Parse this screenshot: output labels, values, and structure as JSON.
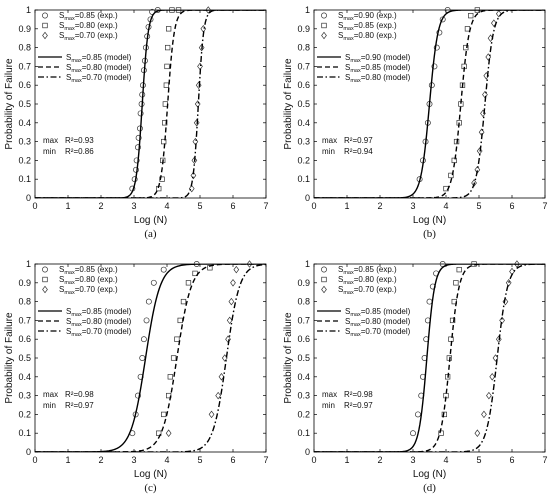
{
  "chart_data": [
    {
      "type": "line",
      "panel_label": "(a)",
      "xlabel": "Log (N)",
      "ylabel": "Probability of Failure",
      "xlim": [
        0,
        7
      ],
      "ylim": [
        0,
        1
      ],
      "xticks": [
        "0",
        "1",
        "2",
        "3",
        "4",
        "5",
        "6",
        "7"
      ],
      "yticks": [
        "0",
        "0.1",
        "0.2",
        "0.3",
        "0.4",
        "0.5",
        "0.6",
        "0.7",
        "0.8",
        "0.9",
        "1"
      ],
      "legend_position": "top-left",
      "series": [
        {
          "name": "S_max=0.85 (exp.)",
          "kind": "scatter",
          "marker": "circle",
          "points": [
            [
              2.95,
              0.05
            ],
            [
              3.02,
              0.1
            ],
            [
              3.06,
              0.15
            ],
            [
              3.08,
              0.2
            ],
            [
              3.12,
              0.27
            ],
            [
              3.14,
              0.32
            ],
            [
              3.18,
              0.37
            ],
            [
              3.2,
              0.45
            ],
            [
              3.23,
              0.5
            ],
            [
              3.25,
              0.55
            ],
            [
              3.27,
              0.6
            ],
            [
              3.3,
              0.68
            ],
            [
              3.33,
              0.73
            ],
            [
              3.36,
              0.8
            ],
            [
              3.4,
              0.86
            ],
            [
              3.44,
              0.91
            ],
            [
              3.5,
              0.95
            ],
            [
              3.55,
              0.99
            ],
            [
              3.72,
              1.0
            ]
          ]
        },
        {
          "name": "S_max=0.80 (exp.)",
          "kind": "scatter",
          "marker": "square",
          "points": [
            [
              3.75,
              0.05
            ],
            [
              3.85,
              0.1
            ],
            [
              3.87,
              0.2
            ],
            [
              3.9,
              0.3
            ],
            [
              3.93,
              0.4
            ],
            [
              3.95,
              0.5
            ],
            [
              3.98,
              0.6
            ],
            [
              4.0,
              0.7
            ],
            [
              4.02,
              0.8
            ],
            [
              4.05,
              0.9
            ],
            [
              4.15,
              1.0
            ],
            [
              4.35,
              1.0
            ]
          ]
        },
        {
          "name": "S_max=0.70 (exp.)",
          "kind": "scatter",
          "marker": "diamond",
          "points": [
            [
              4.75,
              0.05
            ],
            [
              4.8,
              0.12
            ],
            [
              4.83,
              0.2
            ],
            [
              4.86,
              0.3
            ],
            [
              4.9,
              0.4
            ],
            [
              4.93,
              0.5
            ],
            [
              4.96,
              0.6
            ],
            [
              5.0,
              0.7
            ],
            [
              5.05,
              0.8
            ],
            [
              5.1,
              0.9
            ],
            [
              5.25,
              1.0
            ]
          ]
        },
        {
          "name": "S_max=0.85 (model)",
          "kind": "line",
          "style": "solid",
          "mu": 3.25,
          "s": 0.09
        },
        {
          "name": "S_max=0.80 (model)",
          "kind": "line",
          "style": "dashed",
          "mu": 4.02,
          "s": 0.1
        },
        {
          "name": "S_max=0.70 (model)",
          "kind": "line",
          "style": "dashdot",
          "mu": 4.95,
          "s": 0.08
        }
      ],
      "stats": [
        {
          "label": "max",
          "value": "R²=0.93"
        },
        {
          "label": "min",
          "value": "R²=0.86"
        }
      ]
    },
    {
      "type": "line",
      "panel_label": "(b)",
      "xlabel": "Log (N)",
      "ylabel": "Probability of Failure",
      "xlim": [
        0,
        7
      ],
      "ylim": [
        0,
        1
      ],
      "xticks": [
        "0",
        "1",
        "2",
        "3",
        "4",
        "5",
        "6",
        "7"
      ],
      "yticks": [
        "0",
        "0.1",
        "0.2",
        "0.3",
        "0.4",
        "0.5",
        "0.6",
        "0.7",
        "0.8",
        "0.9",
        "1"
      ],
      "legend_position": "top-left",
      "series": [
        {
          "name": "S_max=0.90 (exp.)",
          "kind": "scatter",
          "marker": "circle",
          "points": [
            [
              3.2,
              0.1
            ],
            [
              3.3,
              0.2
            ],
            [
              3.38,
              0.3
            ],
            [
              3.45,
              0.4
            ],
            [
              3.5,
              0.5
            ],
            [
              3.57,
              0.6
            ],
            [
              3.65,
              0.7
            ],
            [
              3.72,
              0.8
            ],
            [
              3.8,
              0.88
            ],
            [
              3.9,
              0.95
            ],
            [
              4.05,
              1.0
            ]
          ]
        },
        {
          "name": "S_max=0.85 (exp.)",
          "kind": "scatter",
          "marker": "square",
          "points": [
            [
              4.0,
              0.05
            ],
            [
              4.15,
              0.12
            ],
            [
              4.25,
              0.2
            ],
            [
              4.32,
              0.3
            ],
            [
              4.4,
              0.4
            ],
            [
              4.45,
              0.5
            ],
            [
              4.5,
              0.6
            ],
            [
              4.55,
              0.7
            ],
            [
              4.6,
              0.8
            ],
            [
              4.65,
              0.9
            ],
            [
              4.75,
              0.97
            ],
            [
              4.95,
              1.0
            ]
          ]
        },
        {
          "name": "S_max=0.80 (exp.)",
          "kind": "scatter",
          "marker": "diamond",
          "points": [
            [
              4.85,
              0.08
            ],
            [
              4.95,
              0.15
            ],
            [
              5.02,
              0.25
            ],
            [
              5.08,
              0.35
            ],
            [
              5.12,
              0.45
            ],
            [
              5.18,
              0.55
            ],
            [
              5.22,
              0.65
            ],
            [
              5.28,
              0.75
            ],
            [
              5.35,
              0.85
            ],
            [
              5.45,
              0.93
            ],
            [
              5.6,
              0.98
            ]
          ]
        },
        {
          "name": "S_max=0.90 (model)",
          "kind": "line",
          "style": "solid",
          "mu": 3.5,
          "s": 0.13
        },
        {
          "name": "S_max=0.85 (model)",
          "kind": "line",
          "style": "dashed",
          "mu": 4.45,
          "s": 0.13
        },
        {
          "name": "S_max=0.80 (model)",
          "kind": "line",
          "style": "dashdot",
          "mu": 5.18,
          "s": 0.13
        }
      ],
      "stats": [
        {
          "label": "max",
          "value": "R²=0.97"
        },
        {
          "label": "min",
          "value": "R²=0.94"
        }
      ]
    },
    {
      "type": "line",
      "panel_label": "(c)",
      "xlabel": "Log (N)",
      "ylabel": "Probability of Failure",
      "xlim": [
        0,
        7
      ],
      "ylim": [
        0,
        1
      ],
      "xticks": [
        "0",
        "1",
        "2",
        "3",
        "4",
        "5",
        "6",
        "7"
      ],
      "yticks": [
        "0",
        "0.1",
        "0.2",
        "0.3",
        "0.4",
        "0.5",
        "0.6",
        "0.7",
        "0.8",
        "0.9",
        "1"
      ],
      "legend_position": "top-left",
      "series": [
        {
          "name": "S_max=0.85 (exp.)",
          "kind": "scatter",
          "marker": "circle",
          "points": [
            [
              2.95,
              0.1
            ],
            [
              3.05,
              0.2
            ],
            [
              3.12,
              0.3
            ],
            [
              3.2,
              0.4
            ],
            [
              3.25,
              0.5
            ],
            [
              3.3,
              0.6
            ],
            [
              3.38,
              0.7
            ],
            [
              3.45,
              0.8
            ],
            [
              3.6,
              0.9
            ],
            [
              3.9,
              0.97
            ],
            [
              4.9,
              1.0
            ]
          ]
        },
        {
          "name": "S_max=0.80 (exp.)",
          "kind": "scatter",
          "marker": "square",
          "points": [
            [
              3.75,
              0.1
            ],
            [
              3.9,
              0.2
            ],
            [
              4.05,
              0.3
            ],
            [
              4.1,
              0.4
            ],
            [
              4.2,
              0.5
            ],
            [
              4.3,
              0.6
            ],
            [
              4.4,
              0.7
            ],
            [
              4.5,
              0.8
            ],
            [
              4.65,
              0.9
            ],
            [
              4.85,
              0.95
            ],
            [
              5.3,
              0.98
            ]
          ]
        },
        {
          "name": "S_max=0.70 (exp.)",
          "kind": "scatter",
          "marker": "diamond",
          "points": [
            [
              4.05,
              0.1
            ],
            [
              5.35,
              0.2
            ],
            [
              5.55,
              0.3
            ],
            [
              5.65,
              0.4
            ],
            [
              5.75,
              0.5
            ],
            [
              5.85,
              0.6
            ],
            [
              5.9,
              0.7
            ],
            [
              5.95,
              0.8
            ],
            [
              6.0,
              0.9
            ],
            [
              6.1,
              0.97
            ],
            [
              6.5,
              1.0
            ]
          ]
        },
        {
          "name": "S_max=0.85 (model)",
          "kind": "line",
          "style": "solid",
          "mu": 3.35,
          "s": 0.22
        },
        {
          "name": "S_max=0.80 (model)",
          "kind": "line",
          "style": "dashed",
          "mu": 4.3,
          "s": 0.22
        },
        {
          "name": "S_max=0.70 (model)",
          "kind": "line",
          "style": "dashdot",
          "mu": 5.8,
          "s": 0.2
        }
      ],
      "stats": [
        {
          "label": "max",
          "value": "R²=0.98"
        },
        {
          "label": "min",
          "value": "R²=0.97"
        }
      ]
    },
    {
      "type": "line",
      "panel_label": "(d)",
      "xlabel": "Log (N)",
      "ylabel": "Probability of Failure",
      "xlim": [
        0,
        7
      ],
      "ylim": [
        0,
        1
      ],
      "xticks": [
        "0",
        "1",
        "2",
        "3",
        "4",
        "5",
        "6",
        "7"
      ],
      "yticks": [
        "0",
        "0.1",
        "0.2",
        "0.3",
        "0.4",
        "0.5",
        "0.6",
        "0.7",
        "0.8",
        "0.9",
        "1"
      ],
      "legend_position": "top-left",
      "series": [
        {
          "name": "S_max=0.85 (exp.)",
          "kind": "scatter",
          "marker": "circle",
          "points": [
            [
              3.0,
              0.1
            ],
            [
              3.15,
              0.2
            ],
            [
              3.25,
              0.3
            ],
            [
              3.3,
              0.4
            ],
            [
              3.35,
              0.5
            ],
            [
              3.4,
              0.6
            ],
            [
              3.45,
              0.7
            ],
            [
              3.5,
              0.8
            ],
            [
              3.6,
              0.88
            ],
            [
              3.7,
              0.95
            ],
            [
              3.9,
              1.0
            ]
          ]
        },
        {
          "name": "S_max=0.80 (exp.)",
          "kind": "scatter",
          "marker": "square",
          "points": [
            [
              3.85,
              0.1
            ],
            [
              3.95,
              0.2
            ],
            [
              4.0,
              0.3
            ],
            [
              4.05,
              0.4
            ],
            [
              4.1,
              0.5
            ],
            [
              4.15,
              0.6
            ],
            [
              4.2,
              0.7
            ],
            [
              4.25,
              0.8
            ],
            [
              4.3,
              0.9
            ],
            [
              4.4,
              0.97
            ],
            [
              4.85,
              1.0
            ]
          ]
        },
        {
          "name": "S_max=0.70 (exp.)",
          "kind": "scatter",
          "marker": "diamond",
          "points": [
            [
              4.95,
              0.1
            ],
            [
              5.15,
              0.2
            ],
            [
              5.3,
              0.3
            ],
            [
              5.4,
              0.4
            ],
            [
              5.5,
              0.5
            ],
            [
              5.6,
              0.6
            ],
            [
              5.7,
              0.7
            ],
            [
              5.8,
              0.8
            ],
            [
              5.9,
              0.9
            ],
            [
              6.0,
              0.96
            ],
            [
              6.15,
              1.0
            ]
          ]
        },
        {
          "name": "S_max=0.85 (model)",
          "kind": "line",
          "style": "solid",
          "mu": 3.42,
          "s": 0.12
        },
        {
          "name": "S_max=0.80 (model)",
          "kind": "line",
          "style": "dashed",
          "mu": 4.12,
          "s": 0.14
        },
        {
          "name": "S_max=0.70 (model)",
          "kind": "line",
          "style": "dashdot",
          "mu": 5.55,
          "s": 0.16
        }
      ],
      "stats": [
        {
          "label": "max",
          "value": "R²=0.98"
        },
        {
          "label": "min",
          "value": "R²=0.97"
        }
      ]
    }
  ]
}
